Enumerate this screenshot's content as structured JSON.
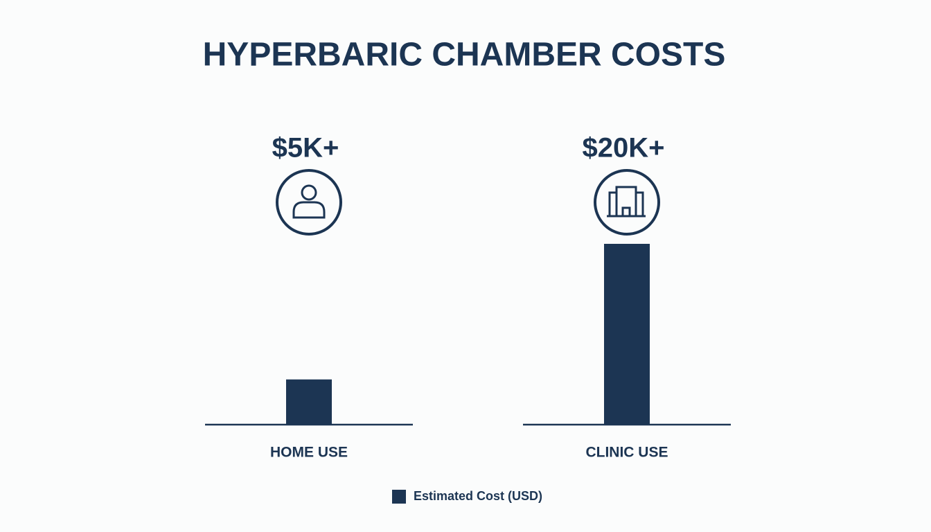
{
  "chart_data": {
    "type": "bar",
    "title": "HYPERBARIC CHAMBER COSTS",
    "categories": [
      "HOME USE",
      "CLINIC USE"
    ],
    "series": [
      {
        "name": "Estimated Cost (USD)",
        "color": "#1c3553",
        "values": [
          5000,
          20000
        ],
        "value_labels": [
          "$5K+",
          "$20K+"
        ]
      }
    ],
    "legend": "bottom"
  }
}
